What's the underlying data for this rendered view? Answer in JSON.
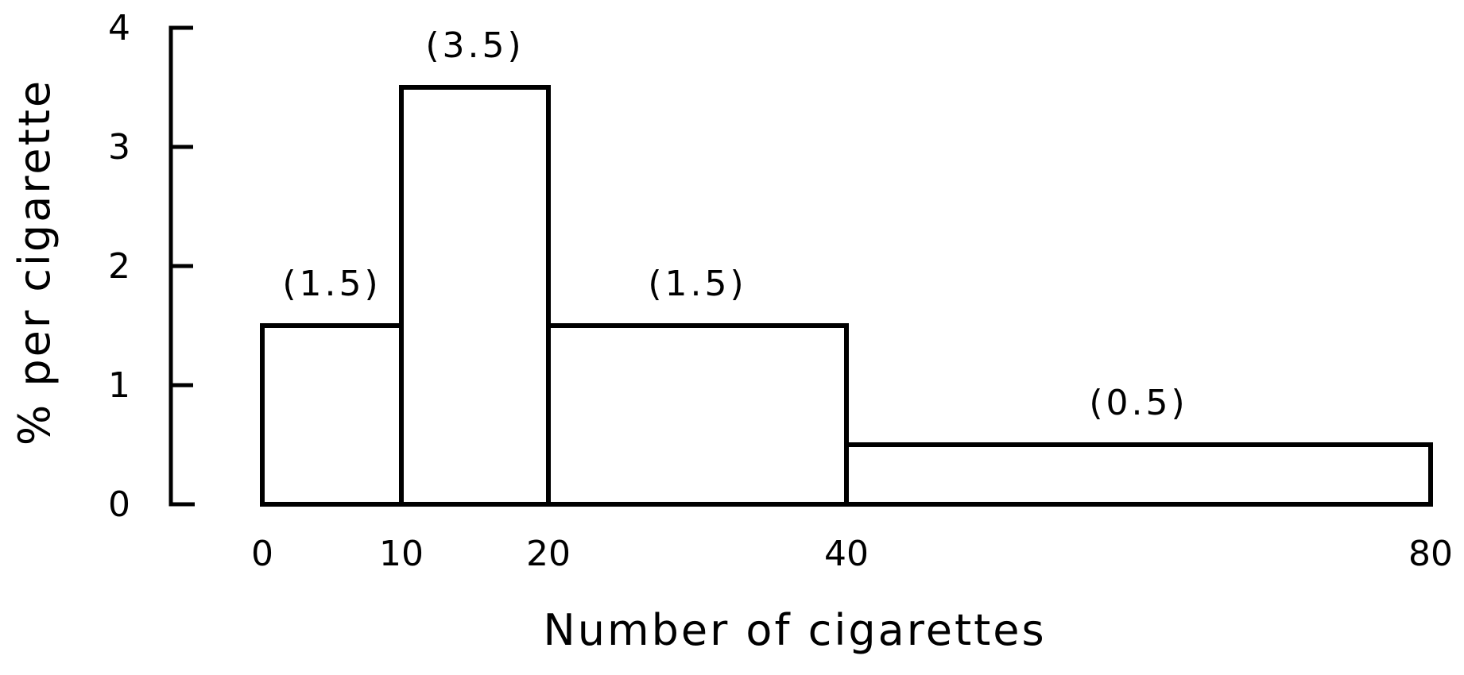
{
  "chart_data": {
    "type": "bar",
    "title": "",
    "xlabel": "Number of cigarettes",
    "ylabel": "% per cigarette",
    "bins": [
      {
        "x0": 0,
        "x1": 10,
        "value": 1.5,
        "label": "(1.5)"
      },
      {
        "x0": 10,
        "x1": 20,
        "value": 3.5,
        "label": "(3.5)"
      },
      {
        "x0": 20,
        "x1": 40,
        "value": 1.5,
        "label": "(1.5)"
      },
      {
        "x0": 40,
        "x1": 80,
        "value": 0.5,
        "label": "(0.5)"
      }
    ],
    "xticks": [
      0,
      10,
      20,
      40,
      80
    ],
    "yticks": [
      0,
      1,
      2,
      3,
      4
    ],
    "xlim": [
      0,
      80
    ],
    "ylim": [
      0,
      4
    ],
    "grid": false
  }
}
